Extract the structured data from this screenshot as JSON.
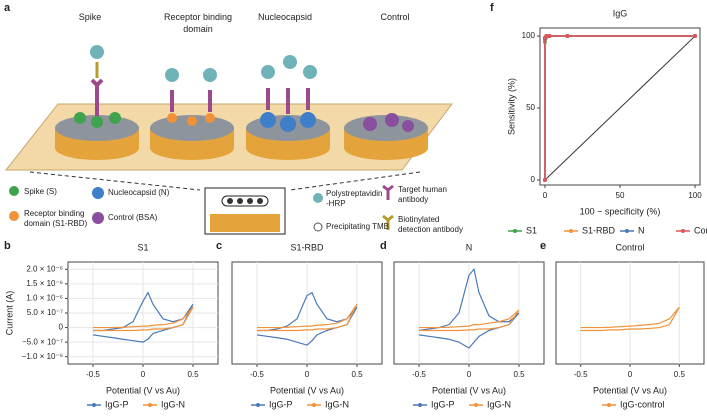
{
  "panel_labels": [
    "a",
    "b",
    "c",
    "d",
    "e",
    "f"
  ],
  "illustration": {
    "headers": [
      [
        "Spike"
      ],
      [
        "Receptor binding",
        "domain"
      ],
      [
        "Nucleocapsid"
      ],
      [
        "Control"
      ]
    ],
    "legend": [
      [
        "Spike (S)"
      ],
      [
        "Receptor binding",
        "domain (S1-RBD)"
      ],
      [
        "Nucleocapsid (N)"
      ],
      [
        "Control (BSA)"
      ],
      [
        "Polystreptavidin",
        "-HRP"
      ],
      [
        "Precipitating TMB"
      ],
      [
        "Target human",
        "antibody"
      ],
      [
        "Biotinylated",
        "detection antibody"
      ]
    ]
  },
  "chart_data": [
    {
      "type": "line",
      "title": "S1",
      "x_label": "Potential (V vs Au)",
      "y_label": "Current (A)",
      "grid": true,
      "x": [
        -0.5,
        -0.4,
        -0.3,
        -0.2,
        -0.1,
        0,
        0.05,
        0.1,
        0.2,
        0.3,
        0.4,
        0.5,
        0.4,
        0.3,
        0.2,
        0.1,
        0.05,
        0,
        -0.1,
        -0.2,
        -0.3,
        -0.4,
        -0.5
      ],
      "xlim": [
        -0.75,
        0.75
      ],
      "xticks": [
        -0.5,
        0,
        0.5
      ],
      "ylim": [
        -1.25e-06,
        2.25e-06
      ],
      "yticks": [
        {
          "value": 2e-06,
          "label": "2.0 × 10⁻⁶"
        },
        {
          "value": 1.5e-06,
          "label": "1.5 × 10⁻⁶"
        },
        {
          "value": 1e-06,
          "label": "1.0 × 10⁻⁶"
        },
        {
          "value": 5e-07,
          "label": "5.0 × 10⁻⁷"
        },
        0,
        {
          "value": -5e-07,
          "label": "−5.0 × 10⁻⁷"
        },
        {
          "value": -1e-06,
          "label": "−1.0 × 10⁻⁶"
        }
      ],
      "series": [
        {
          "name": "IgG-P",
          "color": "#4a7ab8",
          "values": [
            -2.5e-07,
            -3e-07,
            -3.5e-07,
            -4e-07,
            -4.5e-07,
            -5e-07,
            -4e-07,
            -2e-07,
            -1e-07,
            0,
            1e-07,
            8e-07,
            3e-07,
            2e-07,
            3e-07,
            8e-07,
            1.2e-06,
            9e-07,
            2e-07,
            0,
            -5e-08,
            -1e-07,
            -1e-07
          ]
        },
        {
          "name": "IgG-N",
          "color": "#f0923a",
          "values": [
            -1e-07,
            -1e-07,
            -1e-07,
            -1e-07,
            -1e-07,
            -8e-08,
            -8e-08,
            -5e-08,
            -5e-08,
            0,
            1e-07,
            7e-07,
            3e-07,
            1.5e-07,
            1e-07,
            8e-08,
            5e-08,
            5e-08,
            3e-08,
            1e-08,
            0,
            0,
            0
          ]
        }
      ]
    },
    {
      "type": "line",
      "title": "S1-RBD",
      "x_label": "Potential (V vs Au)",
      "grid": true,
      "x": [
        -0.5,
        -0.4,
        -0.3,
        -0.2,
        -0.1,
        0,
        0.05,
        0.1,
        0.2,
        0.3,
        0.4,
        0.5,
        0.4,
        0.3,
        0.2,
        0.1,
        0.05,
        0,
        -0.1,
        -0.2,
        -0.3,
        -0.4,
        -0.5
      ],
      "xlim": [
        -0.75,
        0.75
      ],
      "xticks": [
        -0.5,
        0,
        0.5
      ],
      "ylim": [
        -1.25e-06,
        2.25e-06
      ],
      "series": [
        {
          "name": "IgG-P",
          "color": "#4a7ab8",
          "values": [
            -2.5e-07,
            -3e-07,
            -3.5e-07,
            -4e-07,
            -5e-07,
            -6e-07,
            -4.5e-07,
            -2.5e-07,
            -1e-07,
            0,
            1e-07,
            7e-07,
            3e-07,
            2e-07,
            3e-07,
            8e-07,
            1.2e-06,
            1.1e-06,
            3e-07,
            5e-08,
            -5e-08,
            -1e-07,
            -1e-07
          ]
        },
        {
          "name": "IgG-N",
          "color": "#f0923a",
          "values": [
            -1e-07,
            -1e-07,
            -1e-07,
            -1e-07,
            -1e-07,
            -8e-08,
            -8e-08,
            -5e-08,
            -5e-08,
            0,
            1e-07,
            8e-07,
            3e-07,
            1.5e-07,
            1e-07,
            8e-08,
            5e-08,
            5e-08,
            3e-08,
            1e-08,
            0,
            0,
            0
          ]
        }
      ]
    },
    {
      "type": "line",
      "title": "N",
      "x_label": "Potential (V vs Au)",
      "grid": true,
      "x": [
        -0.5,
        -0.4,
        -0.3,
        -0.2,
        -0.1,
        0,
        0.05,
        0.1,
        0.2,
        0.3,
        0.4,
        0.5,
        0.4,
        0.3,
        0.2,
        0.1,
        0.05,
        0,
        -0.1,
        -0.2,
        -0.3,
        -0.4,
        -0.5
      ],
      "xlim": [
        -0.75,
        0.75
      ],
      "xticks": [
        -0.5,
        0,
        0.5
      ],
      "ylim": [
        -1.25e-06,
        2.25e-06
      ],
      "series": [
        {
          "name": "IgG-P",
          "color": "#4a7ab8",
          "values": [
            -2.5e-07,
            -3e-07,
            -3.5e-07,
            -4e-07,
            -5e-07,
            -7e-07,
            -5e-07,
            -3e-07,
            -1e-07,
            0,
            1e-07,
            5e-07,
            2e-07,
            2e-07,
            4e-07,
            1.2e-06,
            2e-06,
            1.8e-06,
            5e-07,
            1e-07,
            0,
            -5e-08,
            -1e-07
          ]
        },
        {
          "name": "IgG-N",
          "color": "#f0923a",
          "values": [
            -1e-07,
            -1e-07,
            -1e-07,
            -1e-07,
            -1e-07,
            -8e-08,
            -8e-08,
            -5e-08,
            -5e-08,
            0,
            1e-07,
            6e-07,
            3e-07,
            2e-07,
            1.5e-07,
            1e-07,
            1e-07,
            5e-08,
            3e-08,
            1e-08,
            0,
            0,
            0
          ]
        }
      ]
    },
    {
      "type": "line",
      "title": "Control",
      "x_label": "Potential (V vs Au)",
      "grid": true,
      "x": [
        -0.5,
        -0.4,
        -0.3,
        -0.2,
        -0.1,
        0,
        0.05,
        0.1,
        0.2,
        0.3,
        0.4,
        0.5,
        0.4,
        0.3,
        0.2,
        0.1,
        0.05,
        0,
        -0.1,
        -0.2,
        -0.3,
        -0.4,
        -0.5
      ],
      "xlim": [
        -0.75,
        0.75
      ],
      "xticks": [
        -0.5,
        0,
        0.5
      ],
      "ylim": [
        -1.25e-06,
        2.25e-06
      ],
      "series": [
        {
          "name": "IgG-control",
          "color": "#f0923a",
          "values": [
            -1e-07,
            -1e-07,
            -1e-07,
            -8e-08,
            -8e-08,
            -5e-08,
            -5e-08,
            -5e-08,
            -3e-08,
            0,
            1e-07,
            7e-07,
            3e-07,
            1.5e-07,
            1e-07,
            8e-08,
            6e-08,
            5e-08,
            3e-08,
            1e-08,
            0,
            0,
            0
          ]
        }
      ]
    },
    {
      "type": "roc",
      "title": "IgG",
      "x_label": "100 − specificity (%)",
      "y_label": "Sensitivity (%)",
      "grid": false,
      "x": [
        0,
        0,
        1,
        3,
        15,
        100
      ],
      "xlim": [
        -3.3,
        103.3
      ],
      "xticks": [
        0,
        50,
        100
      ],
      "ylim": [
        -3.5,
        105.6
      ],
      "yticks": [
        0,
        50,
        100
      ],
      "series": [
        {
          "name": "S1",
          "color": "#3fa34d",
          "values": [
            0,
            96,
            100,
            100,
            100,
            100
          ]
        },
        {
          "name": "S1-RBD",
          "color": "#f0923a",
          "values": [
            0,
            97,
            99,
            100,
            100,
            100
          ]
        },
        {
          "name": "N",
          "color": "#4a7ab8",
          "values": [
            0,
            98,
            100,
            100,
            100,
            100
          ]
        },
        {
          "name": "Combined",
          "color": "#e0555a",
          "values": [
            0,
            99,
            100,
            100,
            100,
            100
          ]
        }
      ]
    }
  ]
}
